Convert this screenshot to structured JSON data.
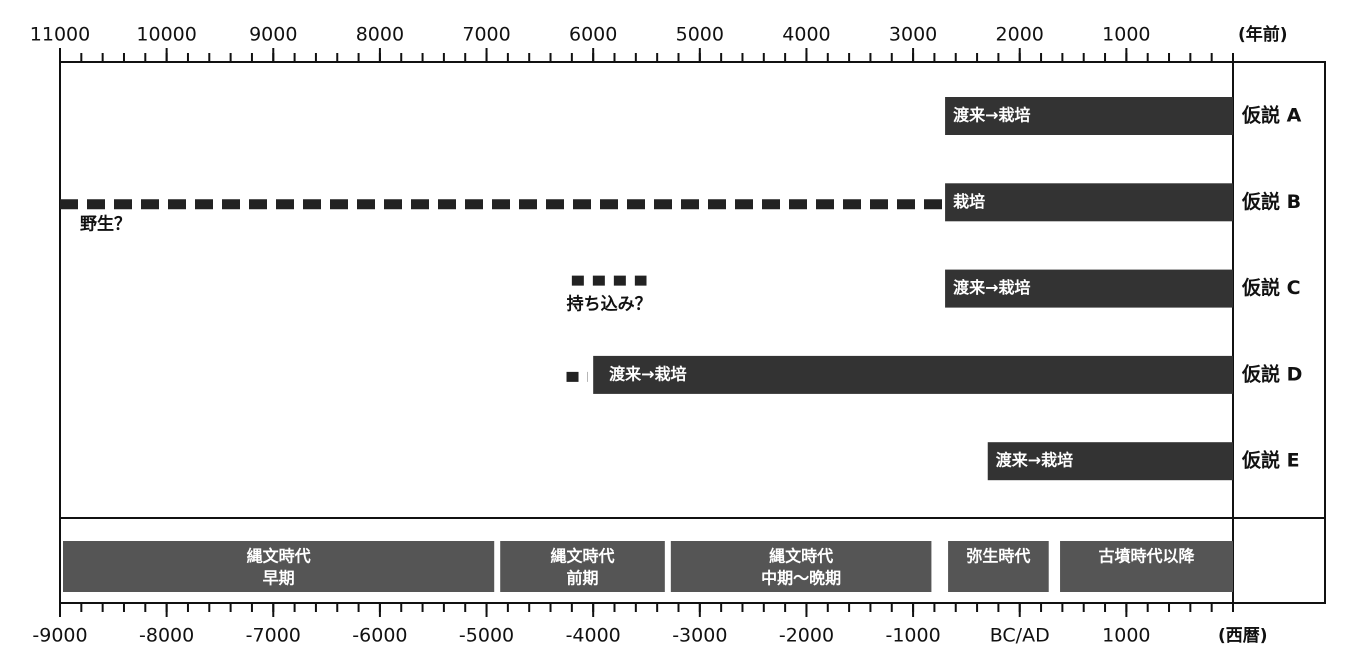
{
  "top_axis": {
    "unit": "(年前)",
    "xlim": [
      11000,
      0
    ],
    "ticks": [
      11000,
      10000,
      9000,
      8000,
      7000,
      6000,
      5000,
      4000,
      3000,
      2000,
      1000
    ]
  },
  "bottom_axis": {
    "unit": "(西暦)",
    "xlim": [
      -9000,
      2000
    ],
    "ticks": [
      -9000,
      -8000,
      -7000,
      -6000,
      -5000,
      -4000,
      -3000,
      -2000,
      -1000,
      {
        "value": 0,
        "label": "BC/AD"
      },
      1000
    ]
  },
  "hypotheses": [
    {
      "label": "仮説 A",
      "bar": {
        "start": 2700,
        "end": 0,
        "label": "渡来→栽培"
      }
    },
    {
      "label": "仮説 B",
      "bar": {
        "start": 2700,
        "end": 0,
        "label": "栽培"
      },
      "dashed": {
        "start": 11000,
        "end": 2700,
        "label": "野生？"
      }
    },
    {
      "label": "仮説 C",
      "bar": {
        "start": 2700,
        "end": 0,
        "label": "渡来→栽培"
      },
      "dashed": {
        "start": 6200,
        "end": 5500,
        "label": "持ち込み？"
      }
    },
    {
      "label": "仮説 D",
      "bar": {
        "start": 6000,
        "end": 0,
        "label": "渡来→栽培"
      },
      "dashed": {
        "start": 6250,
        "end": 6050
      }
    },
    {
      "label": "仮説 E",
      "bar": {
        "start": 2300,
        "end": 0,
        "label": "渡来→栽培"
      }
    }
  ],
  "periods": [
    {
      "lines": [
        "縄文時代",
        "早期"
      ],
      "start": -9000,
      "end": -4900
    },
    {
      "lines": [
        "縄文時代",
        "前期"
      ],
      "start": -4900,
      "end": -3300
    },
    {
      "lines": [
        "縄文時代",
        "中期〜晩期"
      ],
      "start": -3300,
      "end": -800
    },
    {
      "lines": [
        "弥生時代"
      ],
      "start": -700,
      "end": 300
    },
    {
      "lines": [
        "古墳時代以降"
      ],
      "start": 350,
      "end": 2000
    }
  ]
}
